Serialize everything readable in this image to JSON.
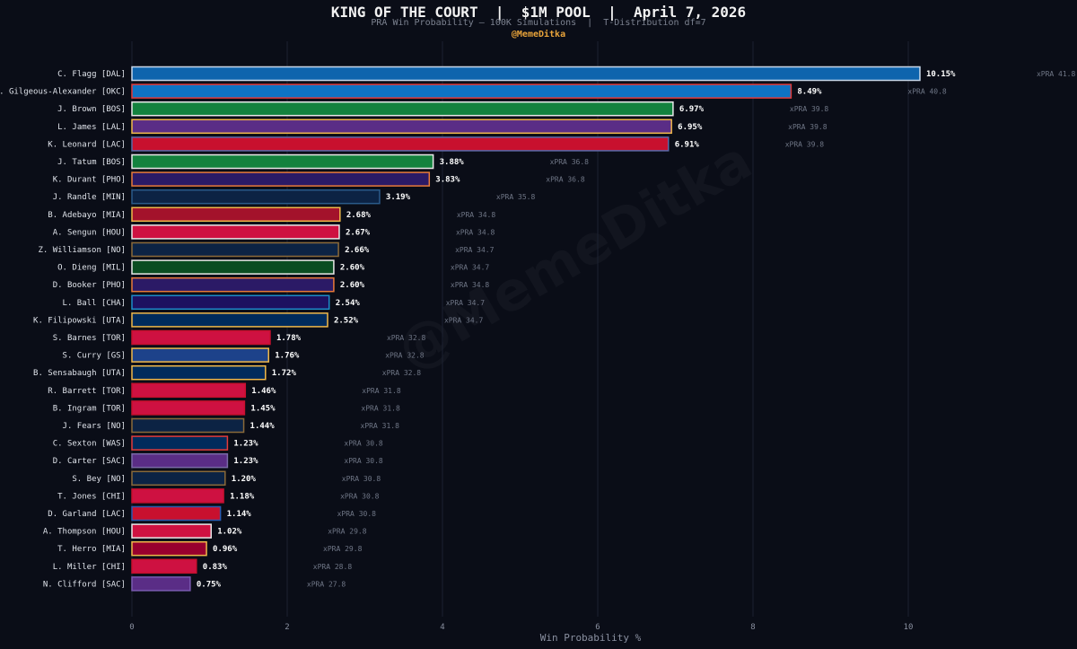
{
  "header": {
    "title": "KING OF THE COURT  |  $1M POOL  |  April 7, 2026",
    "subtitle": "PRA Win Probability — 100K Simulations  |  T-Distribution df=7",
    "handle": "@MemeDitka"
  },
  "watermark": "@MemeDitka",
  "chart_data": {
    "type": "bar",
    "orientation": "horizontal",
    "title": "KING OF THE COURT  |  $1M POOL  |  April 7, 2026",
    "xlabel": "Win Probability %",
    "ylabel": "",
    "xlim": [
      0,
      11.5
    ],
    "xticks": [
      0,
      2,
      4,
      6,
      8,
      10
    ],
    "grid": true,
    "categories": [
      "C. Flagg  [DAL]",
      "S. Gilgeous-Alexander  [OKC]",
      "J. Brown  [BOS]",
      "L. James  [LAL]",
      "K. Leonard  [LAC]",
      "J. Tatum  [BOS]",
      "K. Durant  [PHO]",
      "J. Randle  [MIN]",
      "B. Adebayo  [MIA]",
      "A. Sengun  [HOU]",
      "Z. Williamson  [NO]",
      "O. Dieng  [MIL]",
      "D. Booker  [PHO]",
      "L. Ball  [CHA]",
      "K. Filipowski  [UTA]",
      "S. Barnes  [TOR]",
      "S. Curry  [GS]",
      "B. Sensabaugh  [UTA]",
      "R. Barrett  [TOR]",
      "B. Ingram  [TOR]",
      "J. Fears  [NO]",
      "C. Sexton  [WAS]",
      "D. Carter  [SAC]",
      "S. Bey  [NO]",
      "T. Jones  [CHI]",
      "D. Garland  [LAC]",
      "A. Thompson  [HOU]",
      "T. Herro  [MIA]",
      "L. Miller  [CHI]",
      "N. Clifford  [SAC]"
    ],
    "values": [
      10.15,
      8.49,
      6.97,
      6.95,
      6.91,
      3.88,
      3.83,
      3.19,
      2.68,
      2.67,
      2.66,
      2.6,
      2.6,
      2.54,
      2.52,
      1.78,
      1.76,
      1.72,
      1.46,
      1.45,
      1.44,
      1.23,
      1.23,
      1.2,
      1.18,
      1.14,
      1.02,
      0.96,
      0.83,
      0.75
    ],
    "value_labels": [
      "10.15%",
      "8.49%",
      "6.97%",
      "6.95%",
      "6.91%",
      "3.88%",
      "3.83%",
      "3.19%",
      "2.68%",
      "2.67%",
      "2.66%",
      "2.60%",
      "2.60%",
      "2.54%",
      "2.52%",
      "1.78%",
      "1.76%",
      "1.72%",
      "1.46%",
      "1.45%",
      "1.44%",
      "1.23%",
      "1.23%",
      "1.20%",
      "1.18%",
      "1.14%",
      "1.02%",
      "0.96%",
      "0.83%",
      "0.75%"
    ],
    "xpra_labels": [
      "xPRA 41.8",
      "xPRA 40.8",
      "xPRA 39.8",
      "xPRA 39.8",
      "xPRA 39.8",
      "xPRA 36.8",
      "xPRA 36.8",
      "xPRA 35.8",
      "xPRA 34.8",
      "xPRA 34.8",
      "xPRA 34.7",
      "xPRA 34.7",
      "xPRA 34.8",
      "xPRA 34.7",
      "xPRA 34.7",
      "xPRA 32.8",
      "xPRA 32.8",
      "xPRA 32.8",
      "xPRA 31.8",
      "xPRA 31.8",
      "xPRA 31.8",
      "xPRA 30.8",
      "xPRA 30.8",
      "xPRA 30.8",
      "xPRA 30.8",
      "xPRA 30.8",
      "xPRA 29.8",
      "xPRA 29.8",
      "xPRA 28.8",
      "xPRA 27.8"
    ],
    "fill_colors": [
      "#0e64ad",
      "#0e73c4",
      "#13823e",
      "#5a2d86",
      "#c8102e",
      "#13823e",
      "#2b1a66",
      "#0c2344",
      "#a3122b",
      "#ce1141",
      "#0c2344",
      "#0a4d22",
      "#2b1a66",
      "#1d1160",
      "#002b5c",
      "#ce1141",
      "#1d428a",
      "#002b5c",
      "#ce1141",
      "#ce1141",
      "#0c2344",
      "#002b5c",
      "#5a2d86",
      "#0c2344",
      "#ce1141",
      "#c8102e",
      "#ce1141",
      "#98002e",
      "#ce1141",
      "#5a2d86"
    ],
    "edge_colors": [
      "#c8d8ea",
      "#e23b3b",
      "#e8e8e8",
      "#f0b84a",
      "#5a6aa8",
      "#e8e8e8",
      "#e87a3a",
      "#2a5a8a",
      "#f0b84a",
      "#e8e8e8",
      "#8a6a3a",
      "#e8e8e8",
      "#e87a3a",
      "#1d8cc9",
      "#f0b84a",
      "#c8102e",
      "#f0b84a",
      "#f0b84a",
      "#c8102e",
      "#c8102e",
      "#8a6a3a",
      "#e23b3b",
      "#7a6aa8",
      "#8a6a3a",
      "#c8102e",
      "#2a5ab0",
      "#e8e8e8",
      "#f0b84a",
      "#c8102e",
      "#7a5ab0"
    ]
  }
}
